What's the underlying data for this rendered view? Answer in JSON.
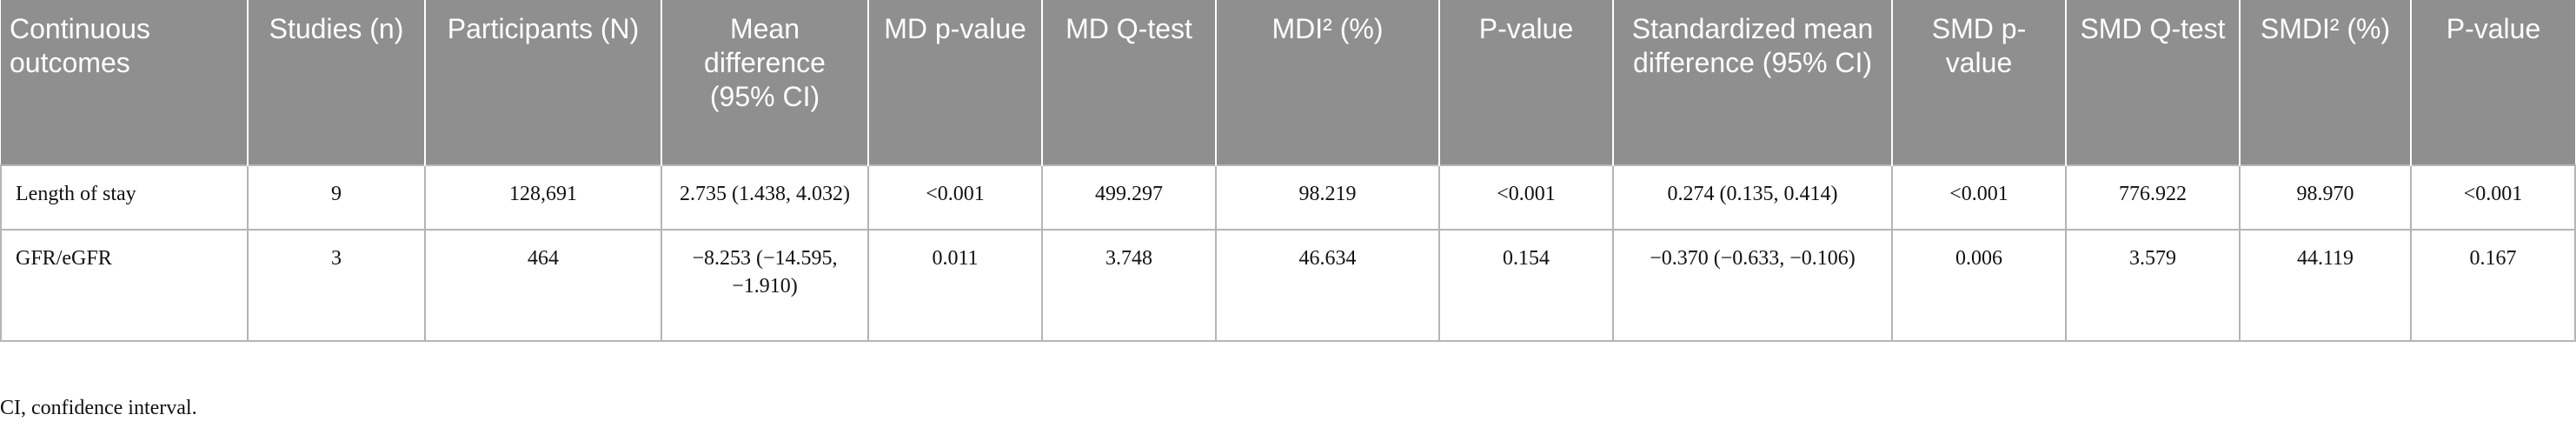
{
  "table": {
    "header": [
      "Continuous outcomes",
      "Studies (n)",
      "Participants (N)",
      "Mean difference (95% CI)",
      "MD p-value",
      "MD Q-test",
      "MDI² (%)",
      "P-value",
      "Standardized mean difference (95% CI)",
      "SMD p-value",
      "SMD Q-test",
      "SMDI² (%)",
      "P-value"
    ],
    "rows": [
      [
        "Length of stay",
        "9",
        "128,691",
        "2.735 (1.438, 4.032)",
        "<0.001",
        "499.297",
        "98.219",
        "<0.001",
        "0.274 (0.135, 0.414)",
        "<0.001",
        "776.922",
        "98.970",
        "<0.001"
      ],
      [
        "GFR/eGFR",
        "3",
        "464",
        "−8.253 (−14.595, −1.910)",
        "0.011",
        "3.748",
        "46.634",
        "0.154",
        "−0.370 (−0.633, −0.106)",
        "0.006",
        "3.579",
        "44.119",
        "0.167"
      ]
    ]
  },
  "footnote": "CI, confidence interval."
}
